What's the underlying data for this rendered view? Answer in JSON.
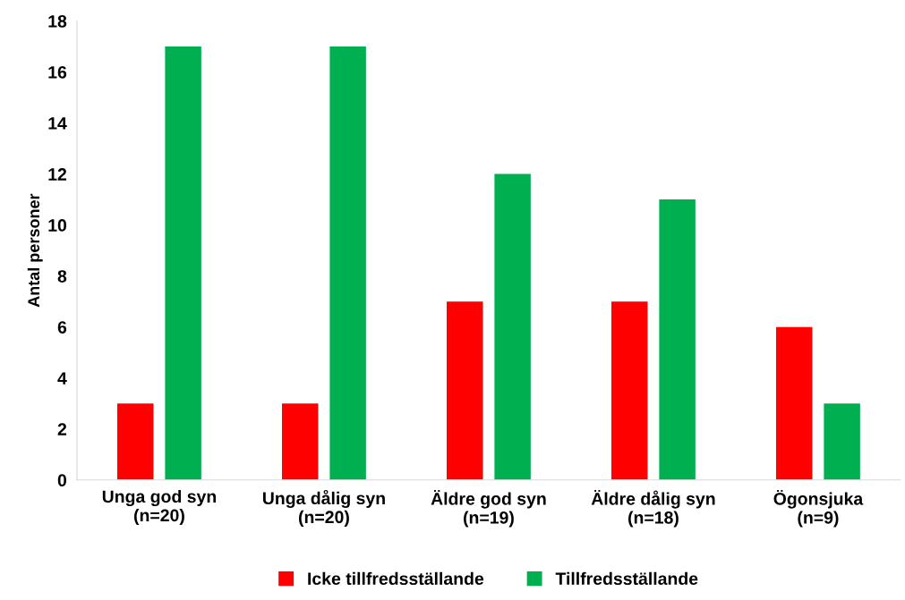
{
  "chart_data": {
    "type": "bar",
    "ylabel": "Antal personer",
    "categories": [
      "Unga god syn\n(n=20)",
      "Unga dålig syn\n(n=20)",
      "Äldre god syn\n(n=19)",
      "Äldre dålig syn\n(n=18)",
      "Ögonsjuka\n(n=9)"
    ],
    "series": [
      {
        "name": "Icke tillfredsställande",
        "color": "#ff0000",
        "values": [
          3,
          3,
          7,
          7,
          6
        ]
      },
      {
        "name": "Tillfredsställande",
        "color": "#00b050",
        "values": [
          17,
          17,
          12,
          11,
          3
        ]
      }
    ],
    "ylim": [
      0,
      18
    ],
    "yticks": [
      0,
      2,
      4,
      6,
      8,
      10,
      12,
      14,
      16,
      18
    ],
    "grid": false,
    "legend": "bottom"
  }
}
